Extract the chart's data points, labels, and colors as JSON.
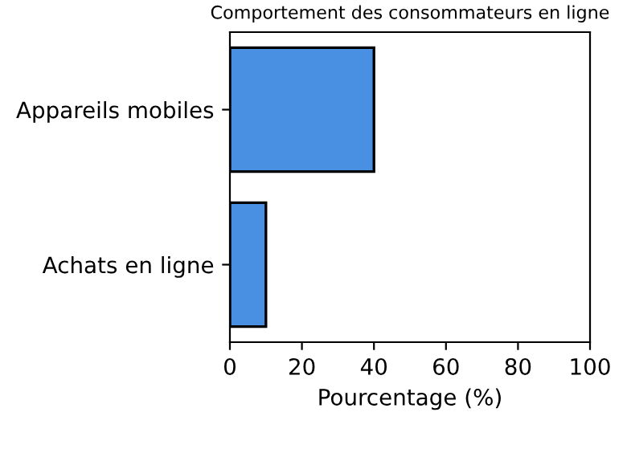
{
  "chart_data": {
    "type": "bar",
    "orientation": "horizontal",
    "title": "Comportement des consommateurs en ligne",
    "xlabel": "Pourcentage (%)",
    "categories": [
      "Appareils mobiles",
      "Achats en ligne"
    ],
    "values": [
      40,
      10
    ],
    "color": "#4a90e2",
    "xlim": [
      0,
      100
    ],
    "xticks": [
      0,
      20,
      40,
      60,
      80,
      100
    ],
    "grid": false
  }
}
